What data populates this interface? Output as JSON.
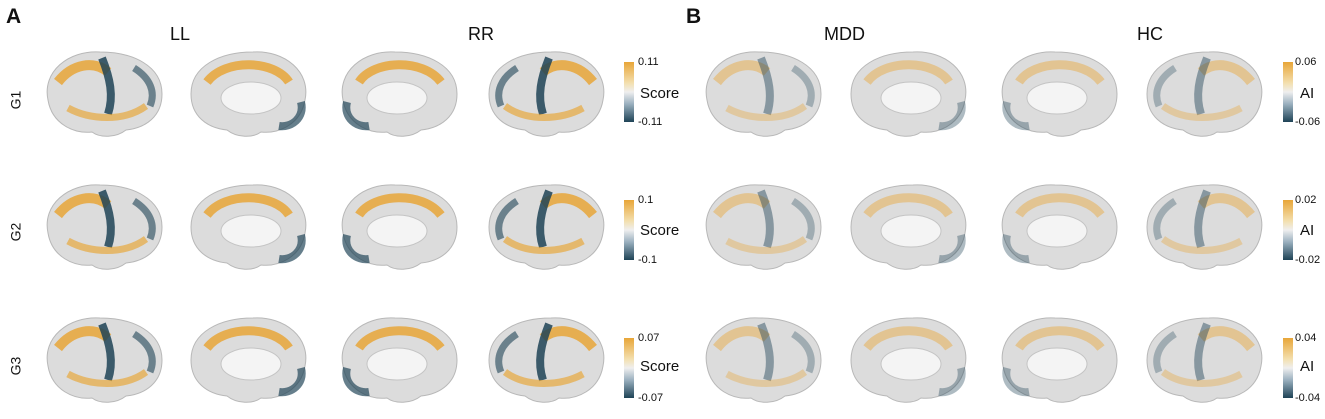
{
  "panels": [
    {
      "letter": "A",
      "columns": [
        "LL",
        "RR"
      ],
      "bar_label": "Score",
      "rows": [
        {
          "label": "G1",
          "max": "0.11",
          "min": "-0.11"
        },
        {
          "label": "G2",
          "max": "0.1",
          "min": "-0.1"
        },
        {
          "label": "G3",
          "max": "0.07",
          "min": "-0.07"
        }
      ]
    },
    {
      "letter": "B",
      "columns": [
        "MDD",
        "HC"
      ],
      "bar_label": "AI",
      "rows": [
        {
          "max": "0.06",
          "min": "-0.06"
        },
        {
          "max": "0.02",
          "min": "-0.02"
        },
        {
          "max": "0.04",
          "min": "-0.04"
        }
      ]
    }
  ],
  "colors": {
    "positive": "#e8a638",
    "neutral": "#efefef",
    "negative": "#1e4356",
    "cortex": "#dcdcdc"
  }
}
